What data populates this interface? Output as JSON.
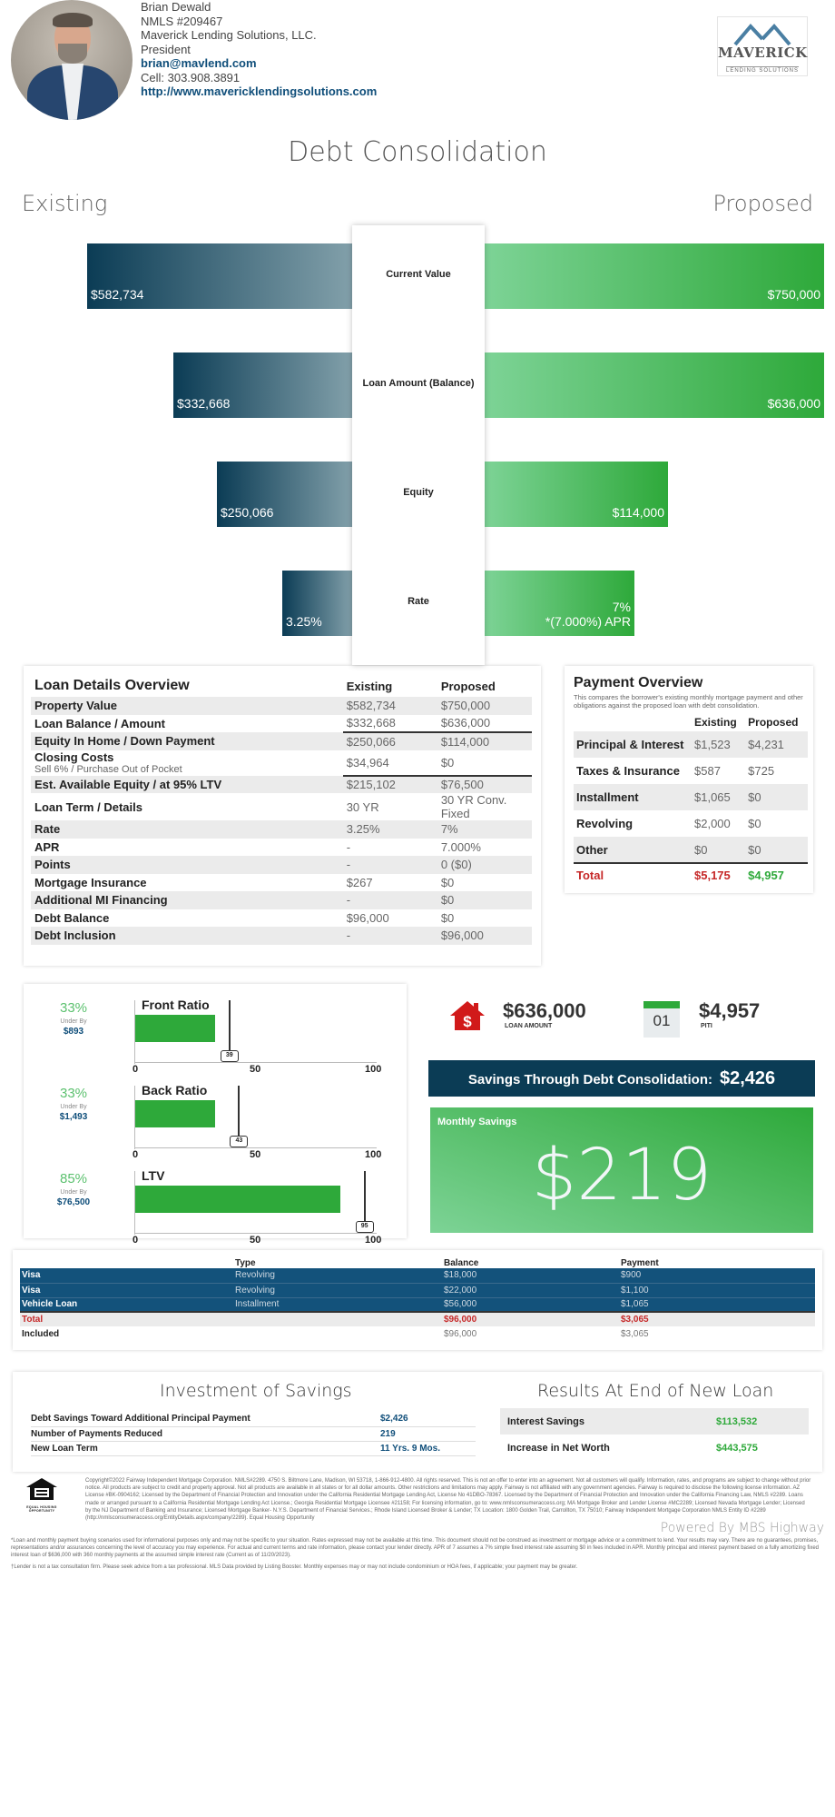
{
  "agent": {
    "name": "Brian Dewald",
    "nmls": "NMLS #209467",
    "company": "Maverick Lending Solutions, LLC.",
    "title": "President",
    "email": "brian@mavlend.com",
    "cell": "Cell: 303.908.3891",
    "website": "http://www.mavericklendingsolutions.com"
  },
  "logo": {
    "name": "MAVERICK",
    "sub": "LENDING SOLUTIONS",
    "color": "#4a7fa3"
  },
  "page_title": "Debt Consolidation",
  "existing_label": "Existing",
  "proposed_label": "Proposed",
  "comparison": [
    {
      "label": "Current Value",
      "existing": "$582,734",
      "proposed": "$750,000",
      "existing_share": 0.777,
      "proposed_share": 1.0
    },
    {
      "label": "Loan Amount (Balance)",
      "existing": "$332,668",
      "proposed": "$636,000",
      "existing_share": 0.523,
      "proposed_share": 1.0
    },
    {
      "label": "Equity",
      "existing": "$250,066",
      "proposed": "$114,000",
      "existing_share": 0.396,
      "proposed_share": 0.54
    },
    {
      "label": "Rate",
      "existing": "3.25%",
      "proposed": "7%",
      "proposed_sub": "*(7.000%) APR",
      "existing_share": 0.205,
      "proposed_share": 0.44
    }
  ],
  "loan_details": {
    "title": "Loan Details Overview",
    "col_existing": "Existing",
    "col_proposed": "Proposed",
    "rows": [
      {
        "label": "Property Value",
        "existing": "$582,734",
        "proposed": "$750,000"
      },
      {
        "label": "Loan Balance / Amount",
        "existing": "$332,668",
        "proposed": "$636,000"
      },
      {
        "label": "Equity In Home / Down Payment",
        "existing": "$250,066",
        "proposed": "$114,000"
      },
      {
        "label": "Closing Costs",
        "sub": "Sell 6% / Purchase Out of Pocket",
        "existing": "$34,964",
        "proposed": "$0"
      },
      {
        "label": "Est. Available Equity / at 95% LTV",
        "existing": "$215,102",
        "proposed": "$76,500"
      },
      {
        "label": "Loan Term / Details",
        "existing": "30 YR",
        "proposed": "30 YR Conv. Fixed"
      },
      {
        "label": "Rate",
        "existing": "3.25%",
        "proposed": "7%"
      },
      {
        "label": "APR",
        "existing": "-",
        "proposed": "7.000%"
      },
      {
        "label": "Points",
        "existing": "-",
        "proposed": "0 ($0)"
      },
      {
        "label": "Mortgage Insurance",
        "existing": "$267",
        "proposed": "$0"
      },
      {
        "label": "Additional MI Financing",
        "existing": "-",
        "proposed": "$0"
      },
      {
        "label": "Debt Balance",
        "existing": "$96,000",
        "proposed": "$0"
      },
      {
        "label": "Debt Inclusion",
        "existing": "-",
        "proposed": "$96,000"
      }
    ]
  },
  "payment_overview": {
    "title": "Payment Overview",
    "description": "This compares the borrower's existing monthly mortgage payment and other obligations against the proposed loan with debt consolidation.",
    "col_existing": "Existing",
    "col_proposed": "Proposed",
    "rows": [
      {
        "label": "Principal & Interest",
        "existing": "$1,523",
        "proposed": "$4,231"
      },
      {
        "label": "Taxes & Insurance",
        "existing": "$587",
        "proposed": "$725"
      },
      {
        "label": "Installment",
        "existing": "$1,065",
        "proposed": "$0"
      },
      {
        "label": "Revolving",
        "existing": "$2,000",
        "proposed": "$0"
      },
      {
        "label": "Other",
        "existing": "$0",
        "proposed": "$0"
      }
    ],
    "total": {
      "label": "Total",
      "existing": "$5,175",
      "proposed": "$4,957"
    },
    "colors": {
      "existing_total": "#c62828",
      "proposed_total": "#2ea93a"
    }
  },
  "ratios": [
    {
      "name": "Front Ratio",
      "pct": "33%",
      "under_by_label": "Under By",
      "under_by": "$893",
      "value": 33,
      "limit": 39
    },
    {
      "name": "Back Ratio",
      "pct": "33%",
      "under_by_label": "Under By",
      "under_by": "$1,493",
      "value": 33,
      "limit": 43
    },
    {
      "name": "LTV",
      "pct": "85%",
      "under_by_label": "Under By",
      "under_by": "$76,500",
      "value": 85,
      "limit": 95
    }
  ],
  "ratio_ticks": [
    "0",
    "50",
    "100"
  ],
  "summary": {
    "loan_amount": "$636,000",
    "loan_amount_label": "LOAN AMOUNT",
    "calendar_day": "01",
    "piti": "$4,957",
    "piti_label": "PITI",
    "savings_label": "Savings Through Debt Consolidation:",
    "savings_value": "$2,426",
    "monthly_savings_label": "Monthly Savings",
    "monthly_savings_value": "$219"
  },
  "debts": {
    "headers": [
      "",
      "Type",
      "Balance",
      "Payment"
    ],
    "rows": [
      {
        "name": "Visa",
        "type": "Revolving",
        "balance": "$18,000",
        "payment": "$900"
      },
      {
        "name": "Visa",
        "type": "Revolving",
        "balance": "$22,000",
        "payment": "$1,100"
      },
      {
        "name": "Vehicle Loan",
        "type": "Installment",
        "balance": "$56,000",
        "payment": "$1,065"
      }
    ],
    "total": {
      "name": "Total",
      "balance": "$96,000",
      "payment": "$3,065"
    },
    "included": {
      "name": "Included",
      "balance": "$96,000",
      "payment": "$3,065"
    }
  },
  "investment": {
    "title": "Investment of Savings",
    "rows": [
      {
        "label": "Debt Savings Toward Additional Principal Payment",
        "value": "$2,426"
      },
      {
        "label": "Number of Payments Reduced",
        "value": "219"
      },
      {
        "label": "New Loan Term",
        "value": "11 Yrs. 9 Mos."
      }
    ]
  },
  "results": {
    "title": "Results At End of New Loan",
    "rows": [
      {
        "label": "Interest Savings",
        "value": "$113,532"
      },
      {
        "label": "Increase in Net Worth",
        "value": "$443,575"
      }
    ]
  },
  "footer": {
    "eho_label": "EQUAL HOUSING OPPORTUNITY",
    "legal": "Copyright©2022 Fairway Independent Mortgage Corporation. NMLS#2289. 4750 S. Biltmore Lane, Madison, WI 53718, 1-866-912-4800. All rights reserved. This is not an offer to enter into an agreement. Not all customers will qualify. Information, rates, and programs are subject to change without prior notice. All products are subject to credit and property approval. Not all products are available in all states or for all dollar amounts. Other restrictions and limitations may apply. Fairway is not affiliated with any government agencies. Fairway is required to disclose the following license information. AZ License #BK-0904162; Licensed by the Department of Financial Protection and Innovation under the California Residential Mortgage Lending Act, License No 41DBO-78367. Licensed by the Department of Financial Protection and Innovation under the California Financing Law, NMLS #2289. Loans made or arranged pursuant to a California Residential Mortgage Lending Act License.; Georgia Residential Mortgage Licensee #21158; For licensing information, go to: www.nmlsconsumeraccess.org; MA Mortgage Broker and Lender License #MC2289; Licensed Nevada Mortgage Lender; Licensed by the NJ Department of Banking and Insurance; Licensed Mortgage Banker- N.Y.S. Department of Financial Services.; Rhode Island Licensed Broker & Lender; TX Location: 1800 Golden Trail, Carrollton, TX 75010; Fairway Independent Mortgage Corporation NMLS Entity ID #2289 (http://nmlsconsumeraccess.org/EntityDetails.aspx/company/2289). Equal Housing Opportunity",
    "powered_by": "Powered By MBS Highway",
    "disclaimer1": "*Loan and monthly payment buying scenarios used for informational purposes only and may not be specific to your situation. Rates expressed may not be available at this time. This document should not be construed as investment or mortgage advice or a commitment to lend. Your results may vary. There are no guarantees, promises, representations and/or assurances concerning the level of accuracy you may experience. For actual and current terms and rate information, please contact your lender directly. APR of 7 assumes a 7% simple fixed interest rate assuming $0 in fees included in APR. Monthly principal and interest payment based on a fully amortizing fixed interest loan of $636,000 with 360 monthly payments at the assumed simple interest rate (Current as of 11/20/2023).",
    "disclaimer2": "†Lender is not a tax consultation firm. Please seek advice from a tax professional. MLS Data provided by Listing Booster. Monthly expenses may or may not include condominium or HOA fees, if applicable; your payment may be greater."
  }
}
